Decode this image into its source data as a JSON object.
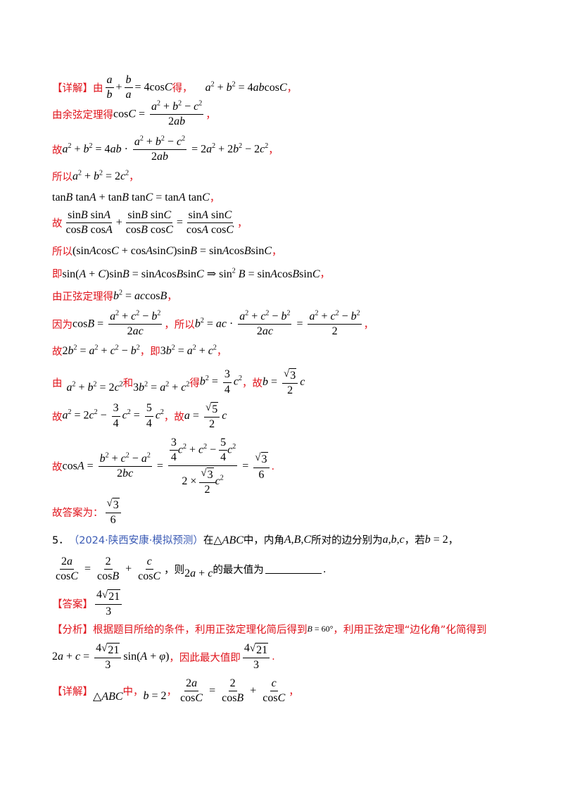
{
  "colors": {
    "accent_red": "#e0141c",
    "source_blue": "#3b5bb5"
  },
  "text": {
    "l1_tag": "【详解】",
    "l1_you": "由",
    "l1_de": "得，",
    "comma": "，",
    "period": ".",
    "l2_pre": "由余弦定理得",
    "gu": "故",
    "suoyi": "所以",
    "ji": "即",
    "l8_pre": "由正弦定理得",
    "l9_pre": "因为",
    "l9_mid": "，所以",
    "l10_mid": "，即",
    "l11_you": "由",
    "l11_he": "和",
    "l11_de": "得",
    "l11_gu": "，故",
    "l12_gu": "，故",
    "answer_label": "故答案为：",
    "q5_num": "5．",
    "q5_source": "（2024·陕西安康·模拟预测）",
    "q5_text1": "在",
    "q5_text2": "中，内角",
    "q5_text3": "所对的边分别为",
    "q5_text4": "，若",
    "q5_text5": "，",
    "q5_text6": "，则",
    "q5_text7": "的最大值为",
    "ans_tag": "【答案】",
    "fx_tag": "【分析】",
    "fx_text1": "根据题目所给的条件，利用正弦定理化简后得到",
    "fx_text2": "，利用正弦定理“边化角”化简得到",
    "fx_text3": "，因此最大值即",
    "xj_tag": "【详解】",
    "xj_zhong": "中，"
  }
}
